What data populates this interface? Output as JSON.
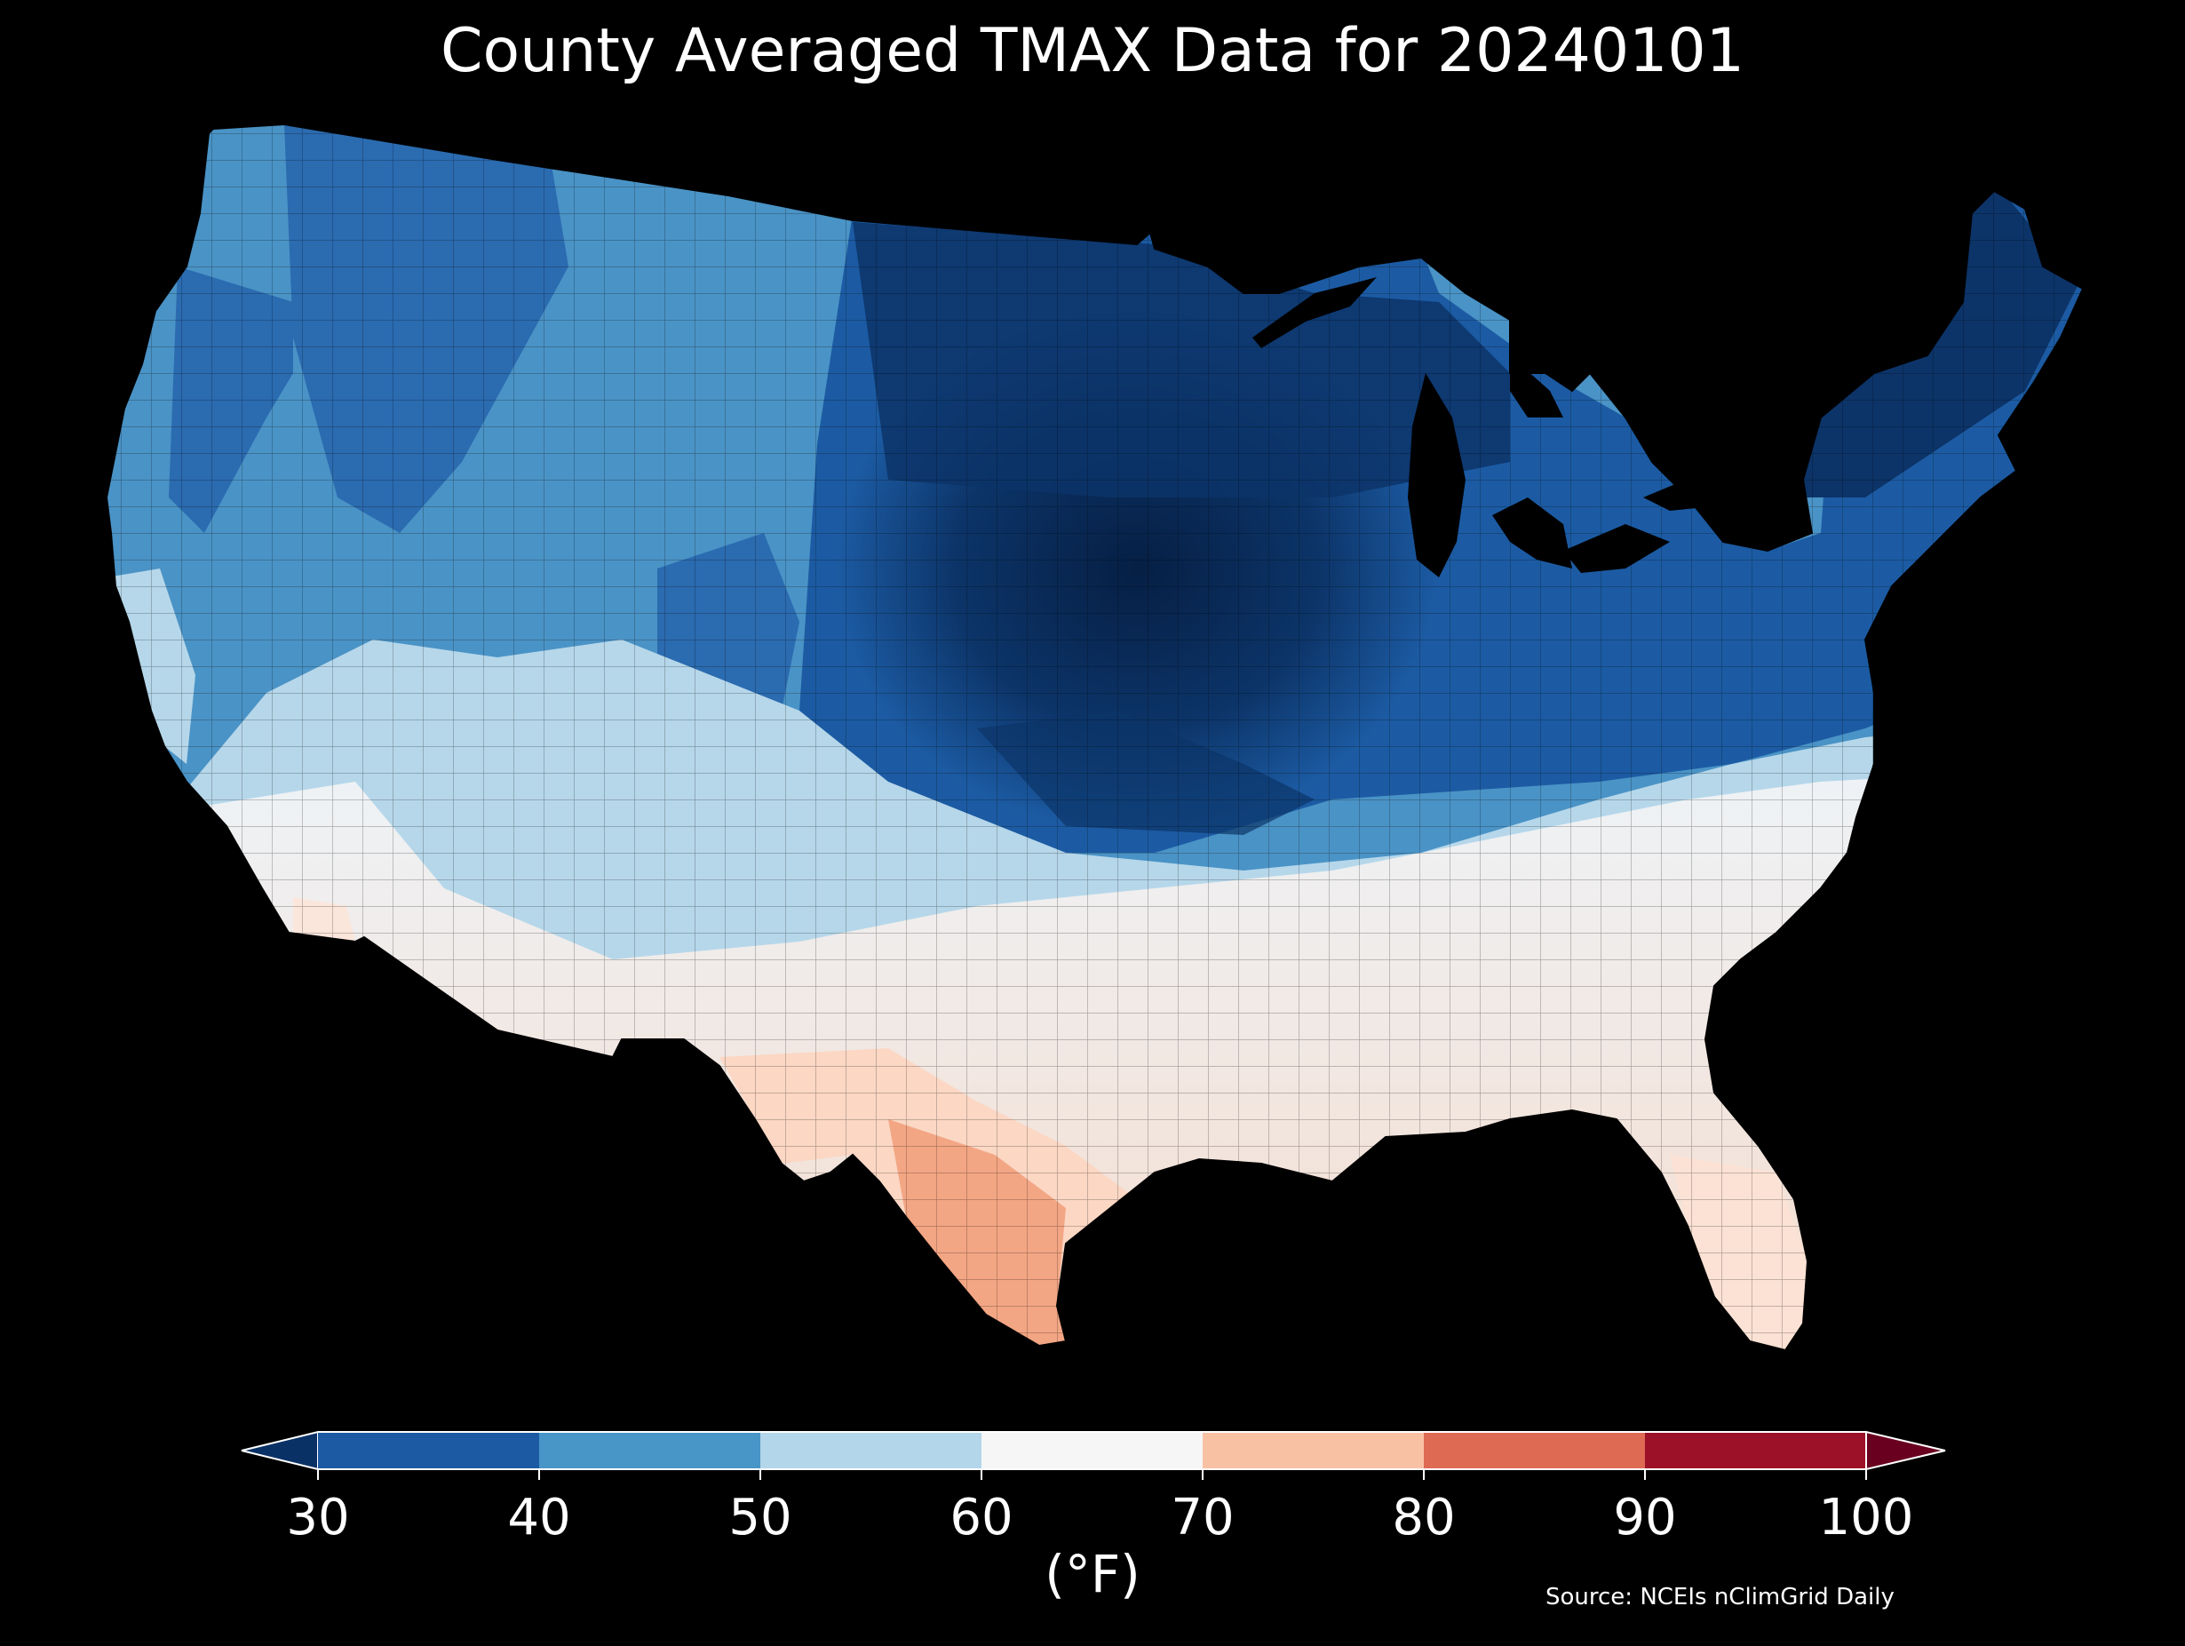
{
  "title": "County Averaged TMAX Data for 20240101",
  "colorbar": {
    "unit_label": "(°F)",
    "ticks": [
      "30",
      "40",
      "50",
      "60",
      "70",
      "80",
      "90",
      "100"
    ],
    "bins": [
      {
        "from": 30,
        "to": 40,
        "color": "#1c5ba3"
      },
      {
        "from": 40,
        "to": 50,
        "color": "#4895c8"
      },
      {
        "from": 50,
        "to": 60,
        "color": "#b3d6ea"
      },
      {
        "from": 60,
        "to": 70,
        "color": "#f6f6f6"
      },
      {
        "from": 70,
        "to": 80,
        "color": "#f9c1a4"
      },
      {
        "from": 80,
        "to": 90,
        "color": "#de6a54"
      },
      {
        "from": 90,
        "to": 100,
        "color": "#9c1028"
      }
    ],
    "under_color": "#0a3166",
    "over_color": "#69001f"
  },
  "source": "Source: NCEIs nClimGrid Daily",
  "map_colors": {
    "deep_blue": "#0c3468",
    "blue": "#1f5fa8",
    "mid_blue": "#4a93c6",
    "light_blue": "#b6d7ea",
    "near_white": "#eef3f7",
    "light_red": "#fbd7c4",
    "salmon": "#f3a684"
  }
}
